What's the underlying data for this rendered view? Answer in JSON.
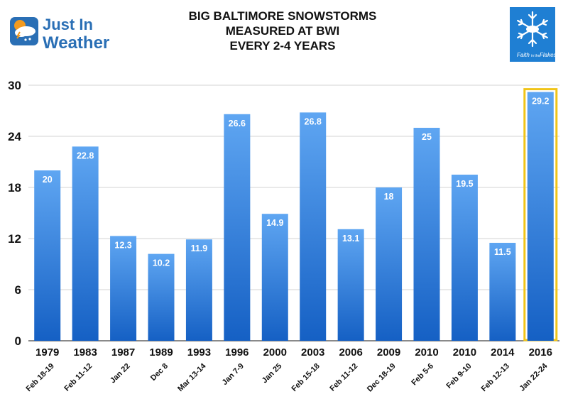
{
  "logo": {
    "line1": "Just In",
    "line2": "Weather",
    "colors": {
      "blue": "#2a6fb5",
      "orange": "#f29a1f"
    }
  },
  "badge": {
    "text_lines": [
      "Faith",
      "in the",
      "Flakes"
    ],
    "icon": "snowflake-icon",
    "color": "#1f7fd3"
  },
  "chart_data": {
    "type": "bar",
    "title": [
      "BIG BALTIMORE SNOWSTORMS",
      "MEASURED AT BWI",
      "EVERY 2-4 YEARS"
    ],
    "categories": [
      "1979",
      "1983",
      "1987",
      "1989",
      "1993",
      "1996",
      "2000",
      "2003",
      "2006",
      "2009",
      "2010",
      "2010",
      "2014",
      "2016"
    ],
    "dates": [
      "Feb 18-19",
      "Feb 11-12",
      "Jan 22",
      "Dec 8",
      "Mar 13-14",
      "Jan 7-9",
      "Jan 25",
      "Feb 15-18",
      "Feb 11-12",
      "Dec 18-19",
      "Feb 5-6",
      "Feb 9-10",
      "Feb 12-13",
      "Jan 22-24"
    ],
    "values": [
      20,
      22.8,
      12.3,
      10.2,
      11.9,
      26.6,
      14.9,
      26.8,
      13.1,
      18,
      25,
      19.5,
      11.5,
      29.2
    ],
    "data_labels": [
      "20",
      "22.8",
      "12.3",
      "10.2",
      "11.9",
      "26.6",
      "14.9",
      "26.8",
      "13.1",
      "18",
      "25",
      "19.5",
      "11.5",
      "29.2"
    ],
    "ylim": [
      0,
      30
    ],
    "yticks": [
      "0",
      "6",
      "12",
      "18",
      "24",
      "30"
    ],
    "highlight_index": 13,
    "grid": true,
    "colors": {
      "bar_top": "#5fa6f2",
      "bar_bottom": "#1560c4",
      "highlight_border": "#f0c419",
      "grid": "#d3d3d3"
    }
  }
}
